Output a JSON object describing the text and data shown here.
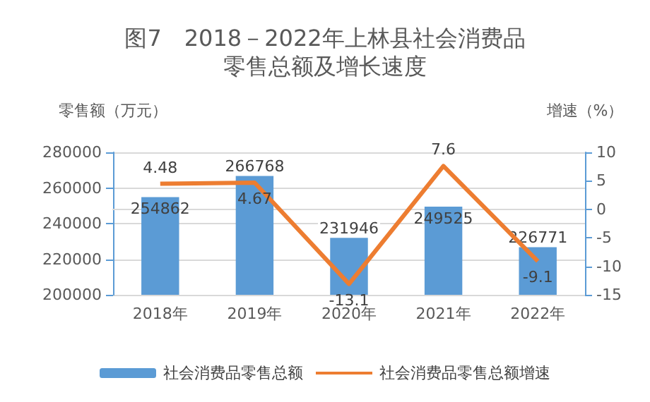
{
  "chart_data": {
    "type": "bar",
    "title": "图7　2018－2022年上林县社会消费品零售总额及增长速度",
    "ylabel": "零售额（万元）",
    "y2label": "增速（%）",
    "categories": [
      "2018年",
      "2019年",
      "2020年",
      "2021年",
      "2022年"
    ],
    "series": [
      {
        "name": "社会消费品零售总额",
        "color": "#5b9bd5",
        "values": [
          254862,
          266768,
          231946,
          249525,
          226771
        ]
      },
      {
        "name": "社会消费品零售总额增速",
        "type": "line",
        "axis": "y2",
        "color": "#ed7d31",
        "marker": "none",
        "values": [
          4.48,
          4.67,
          -13.1,
          7.6,
          -9.1
        ]
      }
    ],
    "ylim": [
      200000,
      280000
    ],
    "yticks": [
      200000,
      220000,
      240000,
      260000,
      280000
    ],
    "y2lim": [
      -15,
      10
    ],
    "y2ticks": [
      -15,
      -10,
      -5,
      0,
      5,
      10
    ],
    "grid": "y",
    "legend": "bottom",
    "data_labels": true
  }
}
